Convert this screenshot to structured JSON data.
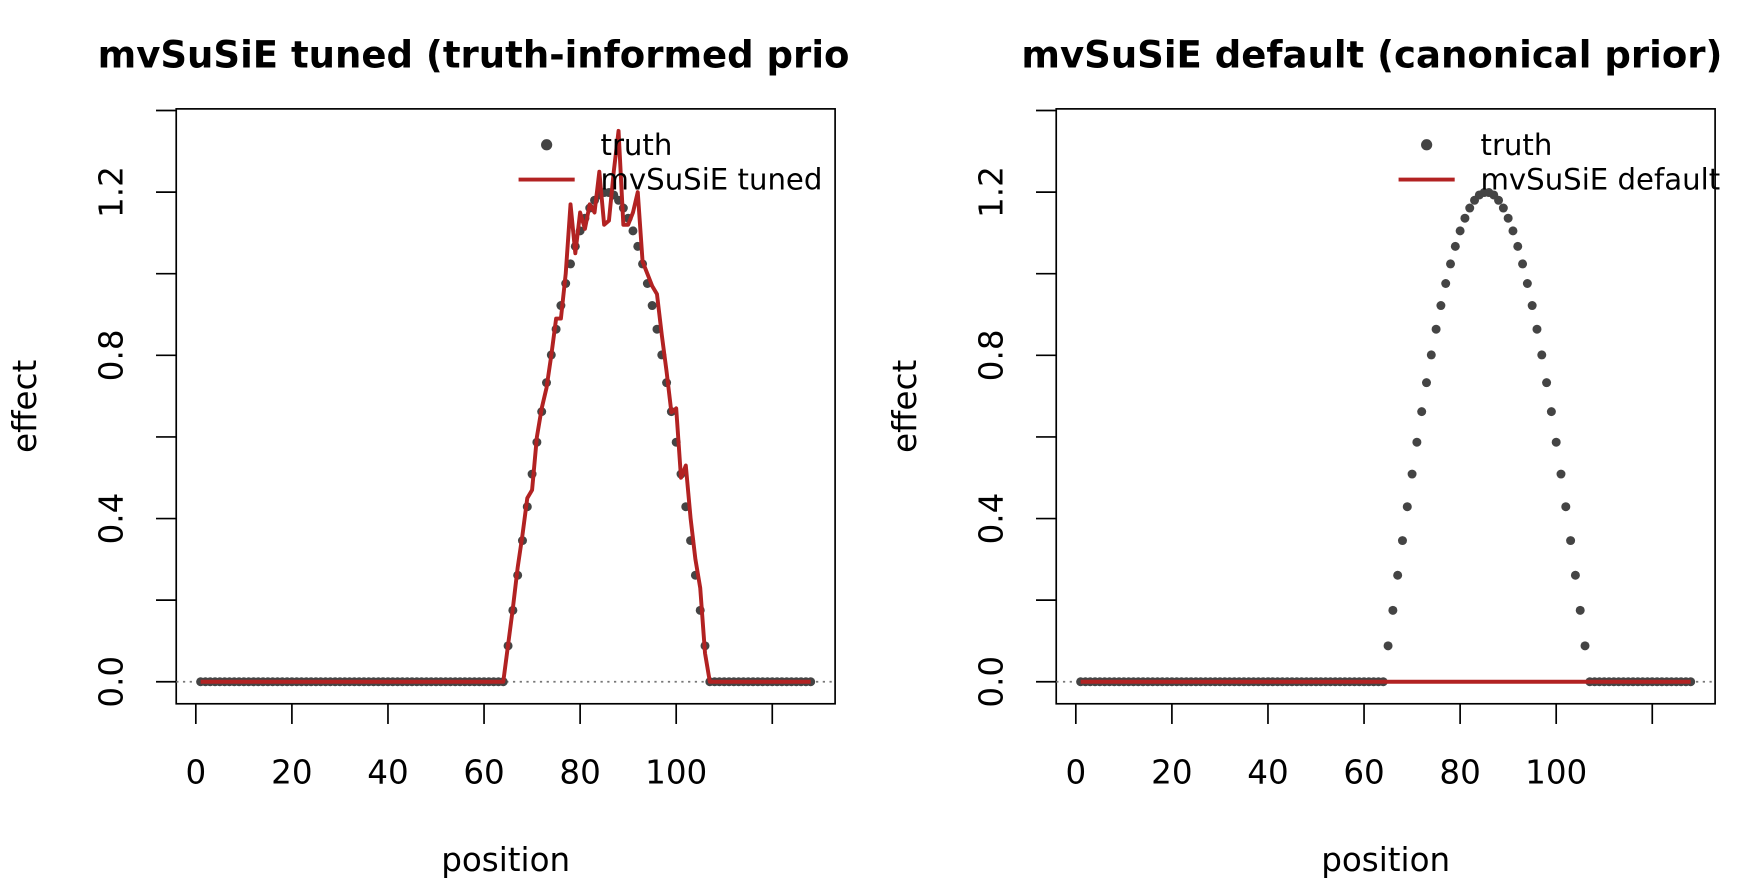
{
  "chart_data": [
    {
      "type": "line",
      "title": "mvSuSiE tuned (truth-informed prio",
      "xlabel": "position",
      "ylabel": "effect",
      "x": [
        1,
        2,
        3,
        4,
        5,
        6,
        7,
        8,
        9,
        10,
        11,
        12,
        13,
        14,
        15,
        16,
        17,
        18,
        19,
        20,
        21,
        22,
        23,
        24,
        25,
        26,
        27,
        28,
        29,
        30,
        31,
        32,
        33,
        34,
        35,
        36,
        37,
        38,
        39,
        40,
        41,
        42,
        43,
        44,
        45,
        46,
        47,
        48,
        49,
        50,
        51,
        52,
        53,
        54,
        55,
        56,
        57,
        58,
        59,
        60,
        61,
        62,
        63,
        64,
        65,
        66,
        67,
        68,
        69,
        70,
        71,
        72,
        73,
        74,
        75,
        76,
        77,
        78,
        79,
        80,
        81,
        82,
        83,
        84,
        85,
        86,
        87,
        88,
        89,
        90,
        91,
        92,
        93,
        94,
        95,
        96,
        97,
        98,
        99,
        100,
        101,
        102,
        103,
        104,
        105,
        106,
        107,
        108,
        109,
        110,
        111,
        112,
        113,
        114,
        115,
        116,
        117,
        118,
        119,
        120,
        121,
        122,
        123,
        124,
        125,
        126,
        127,
        128
      ],
      "series": [
        {
          "name": "truth",
          "mode": "markers",
          "color": "#444444",
          "values": [
            0,
            0,
            0,
            0,
            0,
            0,
            0,
            0,
            0,
            0,
            0,
            0,
            0,
            0,
            0,
            0,
            0,
            0,
            0,
            0,
            0,
            0,
            0,
            0,
            0,
            0,
            0,
            0,
            0,
            0,
            0,
            0,
            0,
            0,
            0,
            0,
            0,
            0,
            0,
            0,
            0,
            0,
            0,
            0,
            0,
            0,
            0,
            0,
            0,
            0,
            0,
            0,
            0,
            0,
            0,
            0,
            0,
            0,
            0,
            0,
            0,
            0,
            0,
            0,
            0.088,
            0.175,
            0.261,
            0.346,
            0.429,
            0.509,
            0.587,
            0.662,
            0.733,
            0.801,
            0.864,
            0.922,
            0.976,
            1.024,
            1.067,
            1.105,
            1.136,
            1.161,
            1.18,
            1.193,
            1.199,
            1.199,
            1.193,
            1.18,
            1.161,
            1.136,
            1.105,
            1.067,
            1.024,
            0.976,
            0.922,
            0.864,
            0.801,
            0.733,
            0.662,
            0.587,
            0.509,
            0.429,
            0.346,
            0.261,
            0.175,
            0.088,
            0,
            0,
            0,
            0,
            0,
            0,
            0,
            0,
            0,
            0,
            0,
            0,
            0,
            0,
            0,
            0,
            0,
            0,
            0,
            0,
            0,
            0
          ]
        },
        {
          "name": "mvSuSiE tuned",
          "mode": "lines",
          "color": "#b22222",
          "values": [
            0,
            0,
            0,
            0,
            0,
            0,
            0,
            0,
            0,
            0,
            0,
            0,
            0,
            0,
            0,
            0,
            0,
            0,
            0,
            0,
            0,
            0,
            0,
            0,
            0,
            0,
            0,
            0,
            0,
            0,
            0,
            0,
            0,
            0,
            0,
            0,
            0,
            0,
            0,
            0,
            0,
            0,
            0,
            0,
            0,
            0,
            0,
            0,
            0,
            0,
            0,
            0,
            0,
            0,
            0,
            0,
            0,
            0,
            0,
            0,
            0,
            0,
            0,
            0,
            0.09,
            0.18,
            0.28,
            0.36,
            0.45,
            0.47,
            0.6,
            0.67,
            0.72,
            0.8,
            0.89,
            0.89,
            1.0,
            1.17,
            1.05,
            1.15,
            1.11,
            1.17,
            1.15,
            1.25,
            1.12,
            1.13,
            1.25,
            1.35,
            1.12,
            1.12,
            1.15,
            1.2,
            1.03,
            1.0,
            0.97,
            0.95,
            0.85,
            0.76,
            0.66,
            0.67,
            0.5,
            0.53,
            0.4,
            0.3,
            0.23,
            0.07,
            0,
            0,
            0,
            0,
            0,
            0,
            0,
            0,
            0,
            0,
            0,
            0,
            0,
            0,
            0,
            0,
            0,
            0,
            0,
            0,
            0,
            0
          ]
        }
      ],
      "xlim": [
        -4.08,
        133.08
      ],
      "ylim": [
        -0.054,
        1.404
      ],
      "xticks": [
        0,
        20,
        40,
        60,
        80,
        100,
        {
          "value": 120,
          "label": null
        }
      ],
      "yticks": [
        {
          "value": 0,
          "label": "0.0"
        },
        {
          "value": 0.2,
          "label": null
        },
        {
          "value": 0.4,
          "label": "0.4"
        },
        {
          "value": 0.6,
          "label": null
        },
        {
          "value": 0.8,
          "label": "0.8"
        },
        {
          "value": 1.0,
          "label": null
        },
        {
          "value": 1.2,
          "label": "1.2"
        },
        {
          "value": 1.4,
          "label": null
        }
      ],
      "hline": 0,
      "legend": "topright"
    },
    {
      "type": "line",
      "title": "mvSuSiE default (canonical prior)",
      "xlabel": "position",
      "ylabel": "effect",
      "x": [
        1,
        2,
        3,
        4,
        5,
        6,
        7,
        8,
        9,
        10,
        11,
        12,
        13,
        14,
        15,
        16,
        17,
        18,
        19,
        20,
        21,
        22,
        23,
        24,
        25,
        26,
        27,
        28,
        29,
        30,
        31,
        32,
        33,
        34,
        35,
        36,
        37,
        38,
        39,
        40,
        41,
        42,
        43,
        44,
        45,
        46,
        47,
        48,
        49,
        50,
        51,
        52,
        53,
        54,
        55,
        56,
        57,
        58,
        59,
        60,
        61,
        62,
        63,
        64,
        65,
        66,
        67,
        68,
        69,
        70,
        71,
        72,
        73,
        74,
        75,
        76,
        77,
        78,
        79,
        80,
        81,
        82,
        83,
        84,
        85,
        86,
        87,
        88,
        89,
        90,
        91,
        92,
        93,
        94,
        95,
        96,
        97,
        98,
        99,
        100,
        101,
        102,
        103,
        104,
        105,
        106,
        107,
        108,
        109,
        110,
        111,
        112,
        113,
        114,
        115,
        116,
        117,
        118,
        119,
        120,
        121,
        122,
        123,
        124,
        125,
        126,
        127,
        128
      ],
      "series": [
        {
          "name": "truth",
          "mode": "markers",
          "color": "#444444",
          "values": [
            0,
            0,
            0,
            0,
            0,
            0,
            0,
            0,
            0,
            0,
            0,
            0,
            0,
            0,
            0,
            0,
            0,
            0,
            0,
            0,
            0,
            0,
            0,
            0,
            0,
            0,
            0,
            0,
            0,
            0,
            0,
            0,
            0,
            0,
            0,
            0,
            0,
            0,
            0,
            0,
            0,
            0,
            0,
            0,
            0,
            0,
            0,
            0,
            0,
            0,
            0,
            0,
            0,
            0,
            0,
            0,
            0,
            0,
            0,
            0,
            0,
            0,
            0,
            0,
            0.088,
            0.175,
            0.261,
            0.346,
            0.429,
            0.509,
            0.587,
            0.662,
            0.733,
            0.801,
            0.864,
            0.922,
            0.976,
            1.024,
            1.067,
            1.105,
            1.136,
            1.161,
            1.18,
            1.193,
            1.199,
            1.199,
            1.193,
            1.18,
            1.161,
            1.136,
            1.105,
            1.067,
            1.024,
            0.976,
            0.922,
            0.864,
            0.801,
            0.733,
            0.662,
            0.587,
            0.509,
            0.429,
            0.346,
            0.261,
            0.175,
            0.088,
            0,
            0,
            0,
            0,
            0,
            0,
            0,
            0,
            0,
            0,
            0,
            0,
            0,
            0,
            0,
            0,
            0,
            0,
            0,
            0,
            0,
            0
          ]
        },
        {
          "name": "mvSuSiE default",
          "mode": "lines",
          "color": "#b22222",
          "values": [
            0,
            0,
            0,
            0,
            0,
            0,
            0,
            0,
            0,
            0,
            0,
            0,
            0,
            0,
            0,
            0,
            0,
            0,
            0,
            0,
            0,
            0,
            0,
            0,
            0,
            0,
            0,
            0,
            0,
            0,
            0,
            0,
            0,
            0,
            0,
            0,
            0,
            0,
            0,
            0,
            0,
            0,
            0,
            0,
            0,
            0,
            0,
            0,
            0,
            0,
            0,
            0,
            0,
            0,
            0,
            0,
            0,
            0,
            0,
            0,
            0,
            0,
            0,
            0,
            0,
            0,
            0,
            0,
            0,
            0,
            0,
            0,
            0,
            0,
            0,
            0,
            0,
            0,
            0,
            0,
            0,
            0,
            0,
            0,
            0,
            0,
            0,
            0,
            0,
            0,
            0,
            0,
            0,
            0,
            0,
            0,
            0,
            0,
            0,
            0,
            0,
            0,
            0,
            0,
            0,
            0,
            0,
            0,
            0,
            0,
            0,
            0,
            0,
            0,
            0,
            0,
            0,
            0,
            0,
            0,
            0,
            0,
            0,
            0,
            0,
            0,
            0,
            0
          ]
        }
      ],
      "xlim": [
        -4.08,
        133.08
      ],
      "ylim": [
        -0.054,
        1.404
      ],
      "xticks": [
        0,
        20,
        40,
        60,
        80,
        100,
        {
          "value": 120,
          "label": null
        }
      ],
      "yticks": [
        {
          "value": 0,
          "label": "0.0"
        },
        {
          "value": 0.2,
          "label": null
        },
        {
          "value": 0.4,
          "label": "0.4"
        },
        {
          "value": 0.6,
          "label": null
        },
        {
          "value": 0.8,
          "label": "0.8"
        },
        {
          "value": 1.0,
          "label": null
        },
        {
          "value": 1.2,
          "label": "1.2"
        },
        {
          "value": 1.4,
          "label": null
        }
      ],
      "hline": 0,
      "legend": "topright"
    }
  ]
}
